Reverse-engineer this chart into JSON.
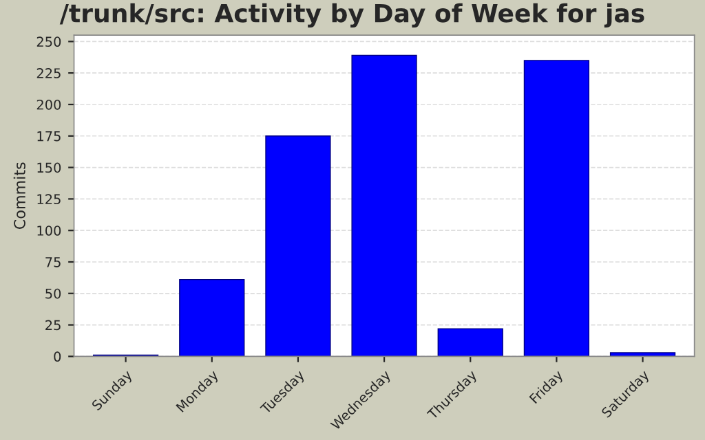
{
  "chart_data": {
    "type": "bar",
    "title": "/trunk/src: Activity by Day of Week for jas",
    "ylabel": "Commits",
    "categories": [
      "Sunday",
      "Monday",
      "Tuesday",
      "Wednesday",
      "Thursday",
      "Friday",
      "Saturday"
    ],
    "values": [
      1,
      61,
      175,
      239,
      22,
      235,
      3
    ],
    "color": "#0000ff",
    "ylim": [
      0,
      255
    ],
    "yticks": [
      0,
      25,
      50,
      75,
      100,
      125,
      150,
      175,
      200,
      225,
      250
    ],
    "grid": "y"
  }
}
